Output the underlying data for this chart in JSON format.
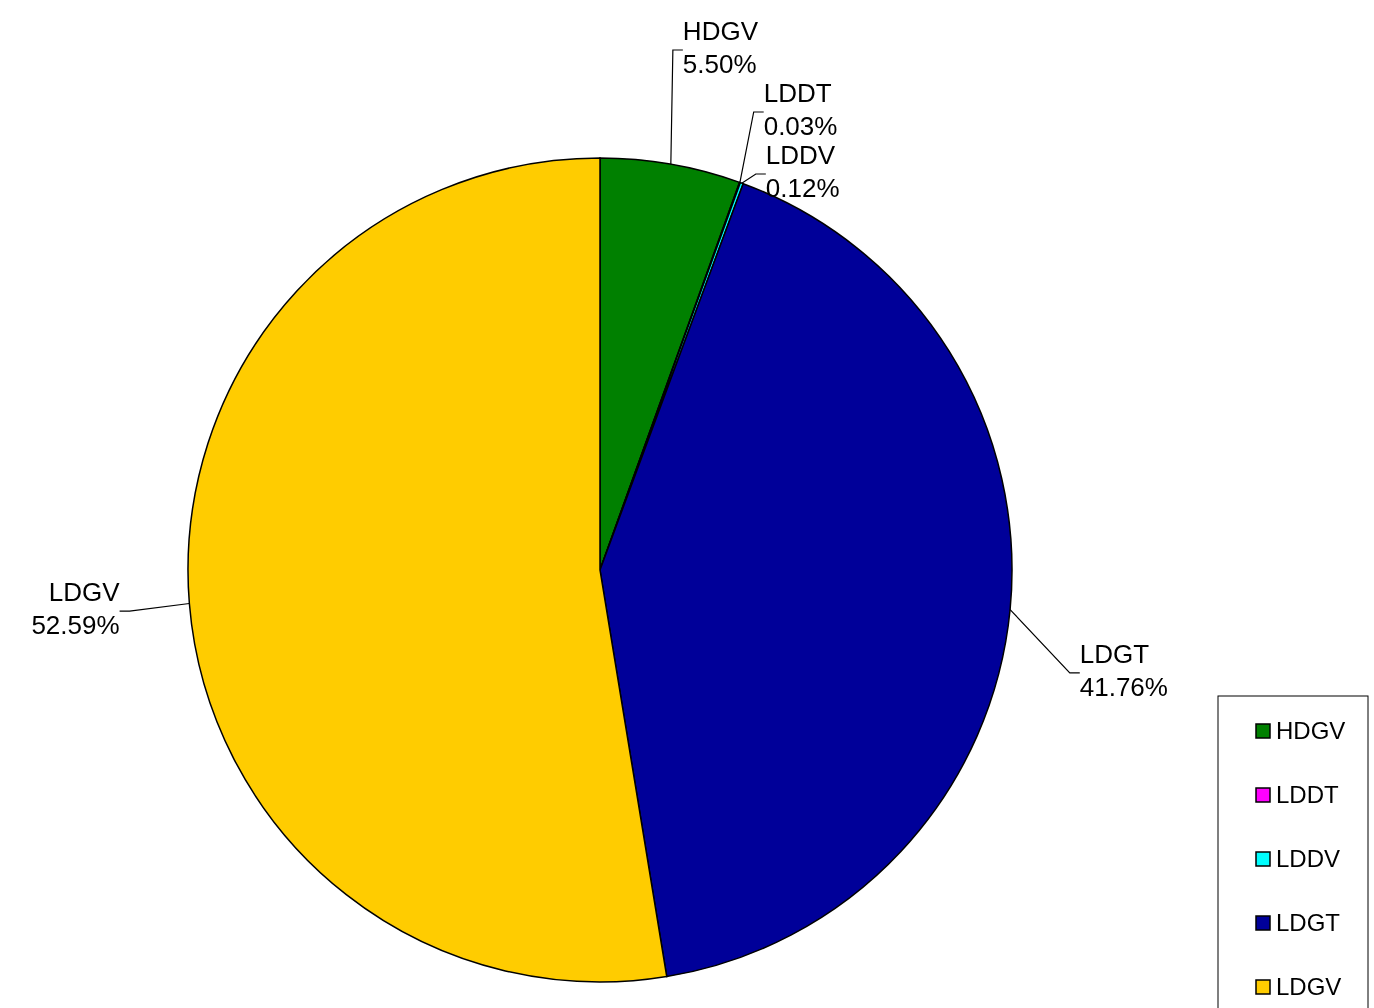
{
  "chart_data": {
    "type": "pie",
    "categories": [
      "HDGV",
      "LDDT",
      "LDDV",
      "LDGT",
      "LDGV"
    ],
    "values": [
      5.5,
      0.03,
      0.12,
      41.76,
      52.59
    ],
    "value_labels": [
      "5.50%",
      "0.03%",
      "0.12%",
      "41.76%",
      "52.59%"
    ],
    "colors": [
      "#008000",
      "#ff00ff",
      "#00ffff",
      "#000099",
      "#ffcc00"
    ],
    "legend": "bottom right"
  }
}
